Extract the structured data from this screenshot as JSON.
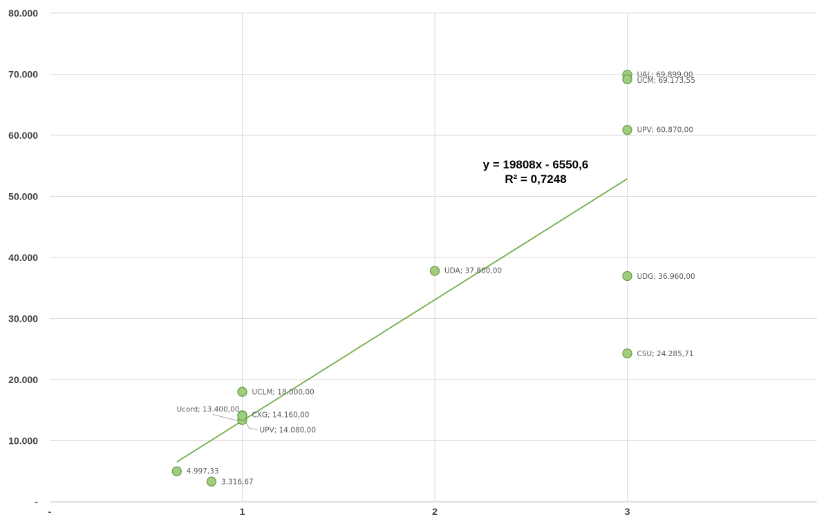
{
  "chart_data": {
    "type": "scatter",
    "xlim": [
      0,
      4
    ],
    "ylim": [
      0,
      80000
    ],
    "grid": true,
    "x_tick_labels": [
      "-",
      "1",
      "2",
      "3"
    ],
    "y_tick_labels": [
      "-",
      "10.000",
      "20.000",
      "30.000",
      "40.000",
      "50.000",
      "60.000",
      "70.000",
      "80.000"
    ],
    "colors": {
      "marker_fill": "#9fcf7c",
      "marker_stroke": "#6a9a4a",
      "trendline": "#70ad47",
      "grid": "#d9d9d9"
    },
    "points": [
      {
        "x": 0.66,
        "y": 4997.33,
        "label": "4.997,33"
      },
      {
        "x": 0.84,
        "y": 3316.67,
        "label": "3.316,67"
      },
      {
        "x": 1,
        "y": 18000,
        "label": "UCLM; 18.000,00"
      },
      {
        "x": 1,
        "y": 13400,
        "label": "Ucord; 13.400,00"
      },
      {
        "x": 1,
        "y": 14160,
        "label": "CXG; 14.160,00"
      },
      {
        "x": 1,
        "y": 14080,
        "label": "UPV; 14.080,00"
      },
      {
        "x": 2,
        "y": 37800,
        "label": "UDA; 37.800,00"
      },
      {
        "x": 3,
        "y": 69899,
        "label": "UAL; 69.899,00"
      },
      {
        "x": 3,
        "y": 69173.55,
        "label": "UCM; 69.173,55"
      },
      {
        "x": 3,
        "y": 60870,
        "label": "UPV; 60.870,00"
      },
      {
        "x": 3,
        "y": 36960,
        "label": "UDG; 36.960,00"
      },
      {
        "x": 3,
        "y": 24285.71,
        "label": "CSU; 24.285,71"
      }
    ],
    "trendline": {
      "slope": 19808,
      "intercept": -6550.6,
      "x_range": [
        0.66,
        3
      ],
      "equation": "y = 19808x - 6550,6",
      "r_squared": "R² = 0,7248"
    }
  }
}
